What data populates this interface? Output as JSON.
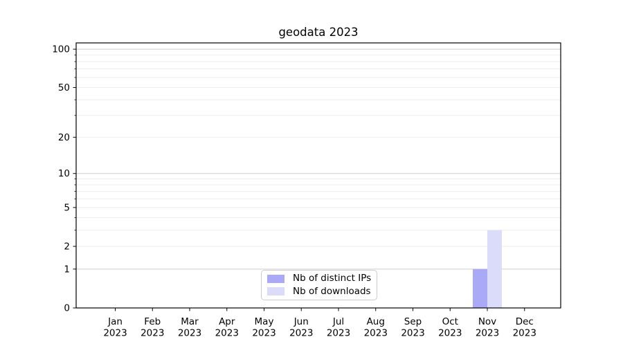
{
  "title": "geodata 2023",
  "chart_data": {
    "type": "bar",
    "title": "geodata 2023",
    "x_tick_months": [
      "Jan",
      "Feb",
      "Mar",
      "Apr",
      "May",
      "Jun",
      "Jul",
      "Aug",
      "Sep",
      "Oct",
      "Nov",
      "Dec"
    ],
    "x_tick_year": "2023",
    "series": [
      {
        "name": "Nb of distinct IPs",
        "color": "#a9a9f8",
        "values": [
          0,
          0,
          0,
          0,
          0,
          0,
          0,
          0,
          0,
          0,
          1,
          0
        ]
      },
      {
        "name": "Nb of downloads",
        "color": "#dbdbfa",
        "values": [
          0,
          0,
          0,
          0,
          0,
          0,
          0,
          0,
          0,
          0,
          3,
          0
        ]
      }
    ],
    "yscale": "log1p",
    "ylim": [
      0,
      112
    ],
    "y_labeled_ticks": [
      0,
      1,
      2,
      5,
      10,
      20,
      50,
      100
    ],
    "y_minor_gridlines": [
      2,
      3,
      4,
      5,
      6,
      7,
      8,
      9,
      20,
      30,
      40,
      50,
      60,
      70,
      80,
      90
    ],
    "y_major_gridlines": [
      1,
      10,
      100
    ],
    "grid_minor_color": "#eeeeee",
    "grid_major_color": "#cfcfcf",
    "axis_color": "#000000",
    "legend_position": "lower center"
  }
}
